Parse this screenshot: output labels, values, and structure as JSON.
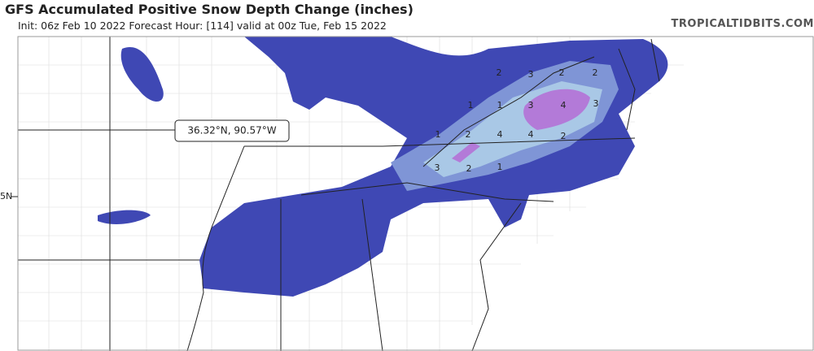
{
  "header": {
    "title": "GFS Accumulated Positive Snow Depth Change (inches)",
    "subtitle": "Init: 06z Feb 10 2022   Forecast Hour: [114]   valid at 00z Tue, Feb 15 2022",
    "site": "TROPICALTIDBITS.COM"
  },
  "map": {
    "tooltip": "36.32°N, 90.57°W",
    "lat_label": "5N",
    "contour_labels": [
      2,
      3,
      2,
      2,
      1,
      1,
      3,
      4,
      3,
      1,
      2,
      4,
      4,
      2,
      3,
      2,
      1
    ]
  }
}
